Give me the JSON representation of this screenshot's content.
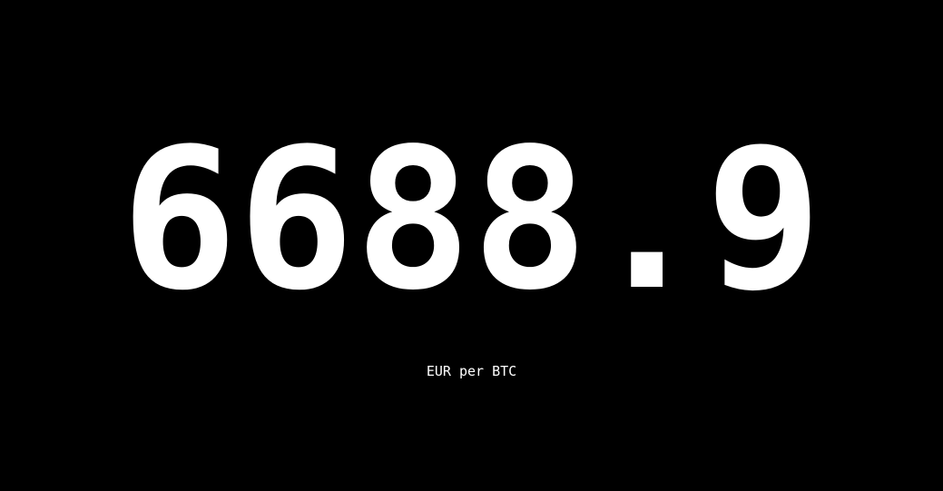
{
  "ticker": {
    "price": "6688.9",
    "unit_label": "EUR per BTC"
  },
  "colors": {
    "background": "#000000",
    "text": "#ffffff"
  }
}
